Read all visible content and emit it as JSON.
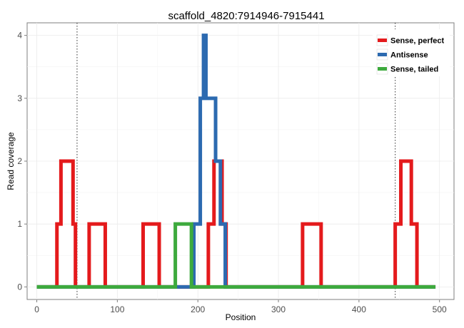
{
  "chart_data": {
    "type": "line",
    "title": "scaffold_4820:7914946-7915441",
    "xlabel": "Position",
    "ylabel": "Read coverage",
    "xlim": [
      -12,
      518
    ],
    "ylim": [
      -0.2,
      4.2
    ],
    "x_ticks": [
      0,
      100,
      200,
      300,
      400,
      500
    ],
    "y_ticks": [
      0,
      1,
      2,
      3,
      4
    ],
    "grid": true,
    "legend_position": "top-right",
    "vlines": [
      50,
      445
    ],
    "series": [
      {
        "name": "Sense, perfect",
        "color": "#e41a1c",
        "x": [
          0,
          25,
          25,
          30,
          30,
          45,
          45,
          48,
          48,
          50,
          50,
          65,
          65,
          70,
          70,
          85,
          85,
          132,
          132,
          152,
          152,
          213,
          213,
          220,
          220,
          230,
          230,
          235,
          235,
          243,
          243,
          330,
          330,
          353,
          353,
          445,
          445,
          452,
          452,
          465,
          465,
          472,
          472,
          495
        ],
        "y": [
          0,
          0,
          1,
          1,
          2,
          2,
          1,
          1,
          0,
          0,
          0,
          0,
          1,
          1,
          1,
          1,
          0,
          0,
          1,
          1,
          0,
          0,
          1,
          1,
          2,
          2,
          1,
          1,
          0,
          0,
          0,
          0,
          1,
          1,
          0,
          0,
          1,
          1,
          2,
          2,
          1,
          1,
          0,
          0
        ]
      },
      {
        "name": "Antisense",
        "color": "#2c6ab0",
        "x": [
          0,
          195,
          195,
          203,
          203,
          207,
          207,
          210,
          210,
          222,
          222,
          228,
          228,
          234,
          234,
          495
        ],
        "y": [
          0,
          0,
          1,
          1,
          3,
          3,
          4,
          4,
          3,
          3,
          2,
          2,
          1,
          1,
          0,
          0
        ]
      },
      {
        "name": "Sense, tailed",
        "color": "#3daa3d",
        "x": [
          0,
          172,
          172,
          192,
          192,
          495
        ],
        "y": [
          0,
          0,
          1,
          1,
          0,
          0
        ]
      }
    ]
  }
}
